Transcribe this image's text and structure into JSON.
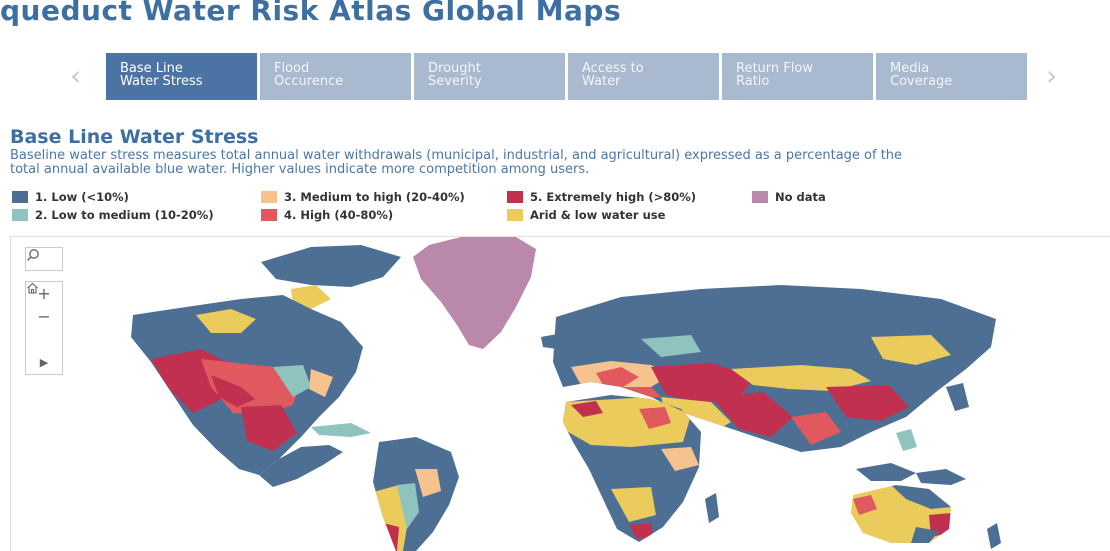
{
  "header": {
    "title": "queduct Water Risk Atlas Global Maps"
  },
  "nav": {
    "prev_glyph": "‹",
    "next_glyph": "›"
  },
  "tabs": [
    {
      "label": "Base Line\nWater Stress",
      "active": true
    },
    {
      "label": "Flood\nOccurence",
      "active": false
    },
    {
      "label": "Drought\nSeverity",
      "active": false
    },
    {
      "label": "Access to\nWater",
      "active": false
    },
    {
      "label": "Return Flow\nRatio",
      "active": false
    },
    {
      "label": "Media\nCoverage",
      "active": false
    }
  ],
  "section": {
    "title": "Base Line Water Stress",
    "description": "Baseline water stress measures total annual water withdrawals (municipal, industrial, and agricultural) expressed as a percentage of the\ntotal annual available blue water. Higher values indicate more competition among users."
  },
  "legend": [
    {
      "label": "1. Low (<10%)",
      "color": "#4e6f94"
    },
    {
      "label": "2. Low to medium (10-20%)",
      "color": "#8fc3bd"
    },
    {
      "label": "3. Medium to high (20-40%)",
      "color": "#f6c38e"
    },
    {
      "label": "4. High (40-80%)",
      "color": "#e0595f"
    },
    {
      "label": "5. Extremely high (>80%)",
      "color": "#c2304f"
    },
    {
      "label": "Arid & low water use",
      "color": "#eacb5b"
    },
    {
      "label": "No data",
      "color": "#b988aa"
    }
  ],
  "map_controls": {
    "search": "search-icon",
    "zoom_in": "+",
    "zoom_out": "−",
    "home": "home-icon",
    "play": "▶"
  }
}
